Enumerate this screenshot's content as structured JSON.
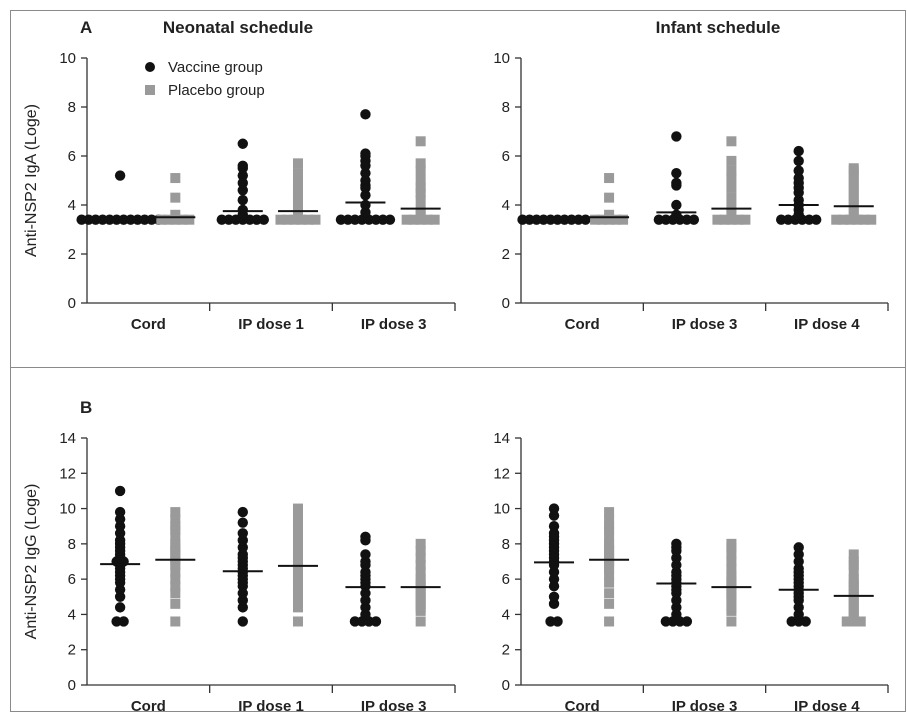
{
  "figure": {
    "panel_a_label": "A",
    "panel_b_label": "B",
    "legend": [
      {
        "label": "Vaccine group",
        "marker": "circle",
        "color": "#111111"
      },
      {
        "label": "Placebo group",
        "marker": "square",
        "color": "#9a9a9a"
      }
    ],
    "colors": {
      "vaccine": "#111111",
      "placebo": "#9a9a9a"
    }
  },
  "chart_data": [
    {
      "type": "scatter",
      "title": "Neonatal schedule",
      "ylabel": "Anti-NSP2 IgA (Loge)",
      "ylim": [
        0,
        10
      ],
      "yticks": [
        0,
        2,
        4,
        6,
        8,
        10
      ],
      "categories": [
        "Cord",
        "IP dose 1",
        "IP dose 3"
      ],
      "series": [
        {
          "name": "Vaccine group",
          "marker": "circle",
          "values": [
            [
              3.4,
              3.4,
              3.4,
              3.4,
              3.4,
              3.4,
              3.4,
              3.4,
              3.4,
              3.4,
              3.4,
              3.4,
              5.2
            ],
            [
              3.4,
              3.4,
              3.4,
              3.4,
              3.4,
              3.4,
              3.4,
              3.6,
              3.8,
              4.2,
              4.6,
              4.9,
              5.2,
              5.5,
              5.6,
              6.5
            ],
            [
              3.4,
              3.4,
              3.4,
              3.4,
              3.4,
              3.4,
              3.4,
              3.4,
              3.7,
              4.0,
              4.4,
              4.7,
              4.8,
              5.0,
              5.3,
              5.6,
              5.8,
              6.0,
              6.1,
              7.7
            ]
          ],
          "means": [
            3.5,
            3.75,
            4.1
          ]
        },
        {
          "name": "Placebo group",
          "marker": "square",
          "values": [
            [
              3.4,
              3.4,
              3.4,
              3.4,
              3.4,
              3.6,
              4.3,
              5.1
            ],
            [
              3.4,
              3.4,
              3.4,
              3.4,
              3.4,
              3.4,
              3.6,
              3.8,
              4.0,
              4.2,
              4.4,
              4.5,
              4.7,
              4.9,
              5.3,
              5.7
            ],
            [
              3.4,
              3.4,
              3.4,
              3.4,
              3.4,
              3.6,
              3.8,
              4.2,
              4.5,
              4.7,
              5.0,
              5.4,
              5.7,
              6.6
            ]
          ],
          "means": [
            3.5,
            3.75,
            3.85
          ]
        }
      ]
    },
    {
      "type": "scatter",
      "title": "Infant schedule",
      "ylabel": "",
      "ylim": [
        0,
        10
      ],
      "yticks": [
        0,
        2,
        4,
        6,
        8,
        10
      ],
      "categories": [
        "Cord",
        "IP dose 3",
        "IP dose 4"
      ],
      "series": [
        {
          "name": "Vaccine group",
          "marker": "circle",
          "values": [
            [
              3.4,
              3.4,
              3.4,
              3.4,
              3.4,
              3.4,
              3.4,
              3.4,
              3.4,
              3.4
            ],
            [
              3.4,
              3.4,
              3.4,
              3.4,
              3.4,
              3.4,
              3.6,
              4.0,
              4.8,
              4.9,
              5.3,
              6.8
            ],
            [
              3.4,
              3.4,
              3.4,
              3.4,
              3.4,
              3.4,
              3.6,
              3.8,
              4.0,
              4.2,
              4.5,
              4.7,
              4.9,
              5.1,
              5.4,
              5.8,
              6.2
            ]
          ],
          "means": [
            3.45,
            3.7,
            4.0
          ]
        },
        {
          "name": "Placebo group",
          "marker": "square",
          "values": [
            [
              3.4,
              3.4,
              3.4,
              3.4,
              3.4,
              3.6,
              4.3,
              5.1
            ],
            [
              3.4,
              3.4,
              3.4,
              3.4,
              3.4,
              3.6,
              3.9,
              4.3,
              4.7,
              5.1,
              5.4,
              5.8,
              6.6
            ],
            [
              3.4,
              3.4,
              3.4,
              3.4,
              3.4,
              3.4,
              3.6,
              3.8,
              4.0,
              4.2,
              4.4,
              4.6,
              4.8,
              5.0,
              5.2,
              5.4,
              5.5
            ]
          ],
          "means": [
            3.5,
            3.85,
            3.95
          ]
        }
      ]
    },
    {
      "type": "scatter",
      "title": "",
      "ylabel": "Anti-NSP2 IgG (Loge)",
      "ylim": [
        0,
        14
      ],
      "yticks": [
        0,
        2,
        4,
        6,
        8,
        10,
        12,
        14
      ],
      "categories": [
        "Cord",
        "IP dose 1",
        "IP dose 3"
      ],
      "series": [
        {
          "name": "Vaccine group",
          "marker": "circle",
          "values": [
            [
              3.6,
              3.6,
              4.4,
              5.0,
              5.4,
              5.8,
              6.0,
              6.2,
              6.4,
              6.6,
              6.8,
              7.0,
              7.0,
              7.2,
              7.4,
              7.6,
              7.8,
              8.0,
              8.2,
              8.6,
              9.0,
              9.4,
              9.8,
              11.0
            ],
            [
              3.6,
              4.4,
              4.8,
              5.2,
              5.6,
              5.8,
              6.0,
              6.2,
              6.4,
              6.6,
              6.8,
              7.0,
              7.2,
              7.4,
              7.8,
              8.2,
              8.6,
              9.2,
              9.8
            ],
            [
              3.6,
              3.6,
              3.6,
              3.6,
              4.0,
              4.4,
              4.8,
              5.2,
              5.6,
              5.8,
              6.0,
              6.2,
              6.4,
              6.8,
              7.0,
              7.4,
              8.2,
              8.4
            ]
          ],
          "means": [
            6.85,
            6.45,
            5.55
          ]
        },
        {
          "name": "Placebo group",
          "marker": "square",
          "values": [
            [
              3.6,
              4.6,
              5.2,
              5.6,
              6.0,
              6.4,
              6.8,
              7.0,
              7.2,
              7.4,
              7.6,
              7.8,
              8.0,
              8.4,
              8.8,
              9.0,
              9.4,
              9.8
            ],
            [
              3.6,
              4.4,
              4.8,
              5.2,
              5.6,
              6.0,
              6.2,
              6.6,
              6.8,
              7.0,
              7.2,
              7.6,
              8.0,
              8.4,
              8.8,
              9.2,
              9.6,
              10.0
            ],
            [
              3.6,
              4.2,
              4.4,
              4.6,
              4.8,
              5.0,
              5.2,
              5.4,
              5.6,
              5.8,
              6.0,
              6.4,
              6.8,
              7.2,
              7.6,
              8.0
            ]
          ],
          "means": [
            7.1,
            6.75,
            5.55
          ]
        }
      ]
    },
    {
      "type": "scatter",
      "title": "",
      "ylabel": "",
      "ylim": [
        0,
        14
      ],
      "yticks": [
        0,
        2,
        4,
        6,
        8,
        10,
        12,
        14
      ],
      "categories": [
        "Cord",
        "IP dose 3",
        "IP dose 4"
      ],
      "series": [
        {
          "name": "Vaccine group",
          "marker": "circle",
          "values": [
            [
              3.6,
              3.6,
              4.6,
              5.0,
              5.6,
              6.0,
              6.4,
              6.8,
              7.0,
              7.2,
              7.4,
              7.6,
              7.8,
              8.0,
              8.2,
              8.4,
              8.6,
              9.0,
              9.6,
              10.0
            ],
            [
              3.6,
              3.6,
              3.6,
              3.6,
              4.0,
              4.4,
              4.8,
              5.2,
              5.4,
              5.6,
              5.8,
              6.0,
              6.2,
              6.4,
              6.8,
              7.2,
              7.6,
              7.8,
              8.0
            ],
            [
              3.6,
              3.6,
              3.6,
              4.0,
              4.4,
              4.8,
              5.0,
              5.2,
              5.4,
              5.6,
              5.8,
              6.0,
              6.2,
              6.4,
              6.6,
              7.0,
              7.4,
              7.8
            ]
          ],
          "means": [
            6.95,
            5.75,
            5.4
          ]
        },
        {
          "name": "Placebo group",
          "marker": "square",
          "values": [
            [
              3.6,
              4.6,
              5.2,
              5.8,
              6.2,
              6.6,
              6.8,
              7.0,
              7.2,
              7.4,
              7.6,
              7.8,
              8.0,
              8.4,
              8.8,
              9.0,
              9.4,
              9.8
            ],
            [
              3.6,
              4.2,
              4.4,
              4.8,
              5.0,
              5.2,
              5.4,
              5.6,
              5.8,
              6.0,
              6.2,
              6.6,
              7.0,
              7.4,
              7.8,
              8.0
            ],
            [
              3.6,
              3.6,
              3.6,
              3.8,
              4.0,
              4.2,
              4.4,
              4.6,
              4.8,
              5.0,
              5.2,
              5.4,
              5.6,
              5.8,
              6.0,
              6.4,
              6.8,
              7.0,
              7.4
            ]
          ],
          "means": [
            7.1,
            5.55,
            5.05
          ]
        }
      ]
    }
  ]
}
